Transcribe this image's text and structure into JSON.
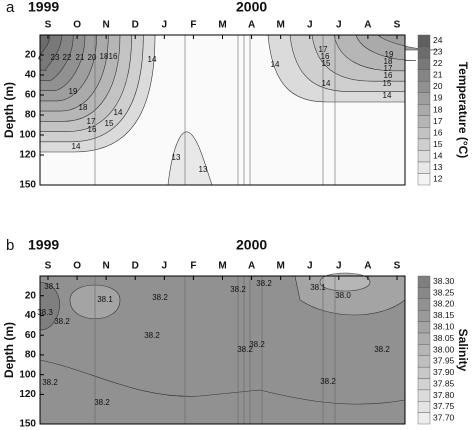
{
  "chart_data": [
    {
      "type": "contour",
      "panel_label": "a",
      "years": [
        "1999",
        "2000"
      ],
      "categories": [
        "S",
        "O",
        "N",
        "D",
        "J",
        "F",
        "M",
        "A",
        "M",
        "J",
        "J",
        "A",
        "S"
      ],
      "ylabel": "Depth (m)",
      "ylim": [
        0,
        150
      ],
      "yticks": [
        20,
        40,
        60,
        80,
        100,
        120,
        150
      ],
      "colorbar": {
        "title": "Temperature (°C)",
        "lim": [
          11.5,
          24.5
        ],
        "ticks": [
          12,
          13,
          14,
          15,
          16,
          17,
          18,
          19,
          20,
          21,
          22,
          23,
          24
        ],
        "colors": [
          "#fafafa",
          "#5a5a5a"
        ]
      },
      "contour_labels": [
        23,
        22,
        21,
        20,
        18,
        16,
        14,
        19,
        18,
        17,
        16,
        15,
        14,
        14,
        13,
        13,
        14,
        17,
        16,
        15,
        19,
        18,
        17,
        16,
        15,
        14,
        14
      ]
    },
    {
      "type": "contour",
      "panel_label": "b",
      "years": [
        "1999",
        "2000"
      ],
      "categories": [
        "S",
        "O",
        "N",
        "D",
        "J",
        "F",
        "M",
        "A",
        "M",
        "J",
        "J",
        "A",
        "S"
      ],
      "ylabel": "Depth (m)",
      "ylim": [
        0,
        150
      ],
      "yticks": [
        20,
        40,
        60,
        80,
        100,
        120,
        150
      ],
      "colorbar": {
        "title": "Salinity",
        "lim": [
          37.675,
          38.325
        ],
        "ticks": [
          {
            "value": 37.7,
            "label": "37.70"
          },
          {
            "value": 37.75,
            "label": "37.75"
          },
          {
            "value": 37.8,
            "label": "37.80"
          },
          {
            "value": 37.85,
            "label": "37.85"
          },
          {
            "value": 37.9,
            "label": "37.90"
          },
          {
            "value": 37.95,
            "label": "37.95"
          },
          {
            "value": 38.0,
            "label": "38.00"
          },
          {
            "value": 38.05,
            "label": "38.05"
          },
          {
            "value": 38.1,
            "label": "38.10"
          },
          {
            "value": 38.15,
            "label": "38.15"
          },
          {
            "value": 38.2,
            "label": "38.20"
          },
          {
            "value": 38.25,
            "label": "38.25"
          },
          {
            "value": 38.3,
            "label": "38.30"
          }
        ],
        "colors": [
          "#f2f2f2",
          "#7a7a7a"
        ]
      },
      "contour_labels": [
        38.1,
        38.3,
        38.2,
        38.1,
        38.2,
        38.2,
        38.2,
        38.2,
        38.2,
        38.2,
        38.1,
        {
          "value": 38,
          "label": "38.0"
        },
        38.2,
        38.2,
        38.2,
        38.2
      ]
    }
  ]
}
